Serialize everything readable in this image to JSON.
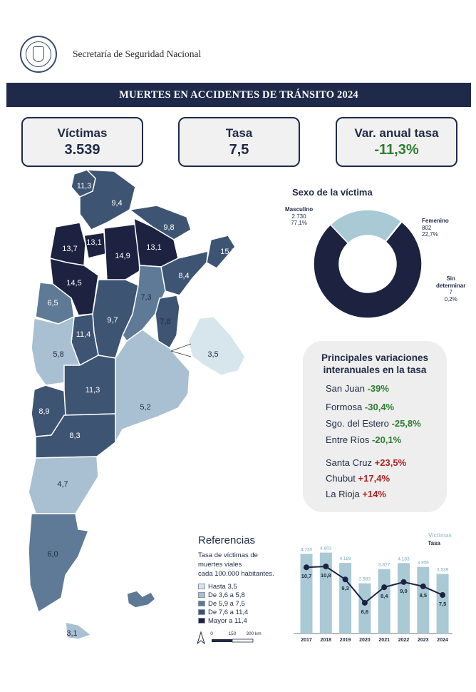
{
  "header": {
    "agency": "Secretaría de Seguridad Nacional",
    "seal_icon": "argentina-seal-icon"
  },
  "banner": {
    "title": "MUERTES EN ACCIDENTES DE TRÁNSITO 2024"
  },
  "kpis": {
    "victimas": {
      "label": "Víctimas",
      "value": "3.539"
    },
    "tasa": {
      "label": "Tasa",
      "value": "7,5"
    },
    "var": {
      "label": "Var. anual tasa",
      "value": "-11,3%"
    }
  },
  "map": {
    "colors": {
      "c1": "#d6e6ec",
      "c2": "#a9c0d2",
      "c3": "#5f7a96",
      "c4": "#3e5473",
      "c5": "#1c2240"
    },
    "labels": {
      "jujuy": "11,3",
      "salta": "9,4",
      "formosa": "9,8",
      "catamarca": "13,7",
      "tucuman": "13,1",
      "sgo": "14,9",
      "chaco": "13,1",
      "misiones": "15,5",
      "larioja": "14,5",
      "corrientes": "8,4",
      "santafe": "7,3",
      "sanjuan": "6,5",
      "cordoba": "9,7",
      "entrerios": "7,8",
      "sanluis": "11,4",
      "mendoza": "5,8",
      "caba": "3,5",
      "lapampa": "11,3",
      "buenosaires": "5,2",
      "neuquen": "8,9",
      "rionegro": "8,3",
      "chubut": "4,7",
      "santacruz": "6,0",
      "tdf": "3,1"
    }
  },
  "sex": {
    "title": "Sexo de la víctima",
    "masculino": {
      "label": "Masculino",
      "count": "2.730",
      "pct": "77,1%",
      "value": 77.1,
      "color": "#1c2240"
    },
    "femenino": {
      "label": "Femenino",
      "count": "802",
      "pct": "22,7%",
      "value": 22.7,
      "color": "#a9c9d4"
    },
    "sin": {
      "label1": "Sin",
      "label2": "determinar",
      "count": "7",
      "pct": "0,2%",
      "value": 0.2,
      "color": "#5f7a96"
    }
  },
  "variations": {
    "title1": "Principales variaciones",
    "title2": "interanuales en la tasa",
    "items": [
      {
        "name": "San Juan",
        "value": "-39%"
      },
      {
        "name": "Formosa",
        "value": "-30,4%"
      },
      {
        "name": "Sgo. del Estero",
        "value": "-25,8%"
      },
      {
        "name": "Entre Ríos",
        "value": "-20,1%"
      },
      {
        "name": "Santa Cruz",
        "value": "+23,5%"
      },
      {
        "name": "Chubut",
        "value": "+17,4%"
      },
      {
        "name": "La Rioja",
        "value": "+14%"
      }
    ]
  },
  "references": {
    "title": "Referencias",
    "desc1": "Tasa de víctimas de",
    "desc2": "muertes viales",
    "desc3": "cada 100.000 habitantes.",
    "items": [
      {
        "label": "Hasta 3,5",
        "color": "#d6e6ec"
      },
      {
        "label": "De 3,6 a 5,8",
        "color": "#a9c0d2"
      },
      {
        "label": "De 5,9 a 7,5",
        "color": "#5f7a96"
      },
      {
        "label": "De 7,6 a 11,4",
        "color": "#3e5473"
      },
      {
        "label": "Mayor a 11,4",
        "color": "#1c2240"
      }
    ],
    "scale": {
      "s0": "0",
      "s1": "150",
      "s2": "300 km"
    }
  },
  "chart_data": {
    "type": "bar+line",
    "legend_victimas": "Víctimas",
    "legend_tasa": "Tasa",
    "categories": [
      "2017",
      "2018",
      "2019",
      "2020",
      "2021",
      "2022",
      "2023",
      "2024"
    ],
    "victimas": [
      4730,
      4803,
      4189,
      2983,
      3827,
      4183,
      3956,
      3539
    ],
    "victimas_labels": [
      "4.730",
      "4.803",
      "4.189",
      "2.983",
      "3.827",
      "4.183",
      "3.956",
      "3.539"
    ],
    "tasa": [
      10.7,
      10.8,
      9.3,
      6.6,
      8.4,
      9.0,
      8.5,
      7.5
    ],
    "tasa_labels": [
      "10,7",
      "10,8",
      "9,3",
      "6,6",
      "8,4",
      "9,0",
      "8,5",
      "7,5"
    ],
    "bar_color": "#a9c9d4",
    "line_color": "#1c2240",
    "ylim_victimas": [
      0,
      5000
    ],
    "ylim_tasa": [
      0,
      12
    ]
  }
}
